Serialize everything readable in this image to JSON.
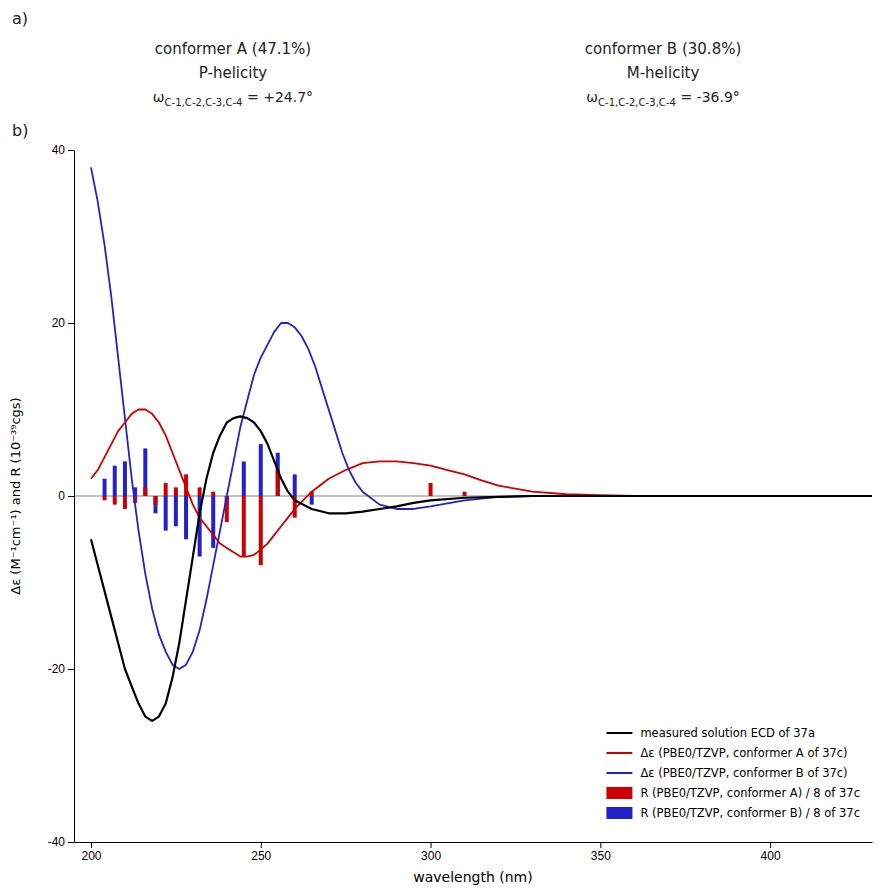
{
  "chart_data": {
    "type": "bar",
    "x_label": "wavelength (nm)",
    "y_label": "Δε (M⁻¹cm⁻¹) and R (10⁻³⁹cgs)",
    "annotations": [
      {
        "text": "a)"
      },
      {
        "text": "b)"
      },
      {
        "text": "conformer A (47.1%)"
      },
      {
        "text": "P-helicity"
      },
      {
        "text": "ω",
        "subscript": "C-1,C-2,C-3,C-4",
        "after": " = +24.7°"
      },
      {
        "text": "conformer B (30.8%)"
      },
      {
        "text": "M-helicity"
      },
      {
        "text": "ω",
        "subscript": "C-1,C-2,C-3,C-4",
        "after": " = -36.9°"
      }
    ],
    "xlim": [
      195,
      430
    ],
    "ylim": [
      -40,
      40
    ],
    "xticks": [
      200,
      250,
      300,
      350,
      400
    ],
    "yticks": [
      -40,
      -20,
      0,
      20,
      40
    ],
    "legend": "lower right",
    "series": [
      {
        "name": "measured solution ECD of 37a",
        "type": "line",
        "color": "#000000",
        "x": [
          200,
          202,
          204,
          206,
          208,
          210,
          212,
          214,
          216,
          218,
          220,
          222,
          224,
          226,
          228,
          230,
          232,
          234,
          236,
          238,
          240,
          242,
          244,
          246,
          248,
          250,
          252,
          254,
          256,
          258,
          260,
          265,
          270,
          275,
          280,
          285,
          290,
          295,
          300,
          310,
          320,
          330,
          340,
          350,
          360,
          370,
          380,
          390,
          400,
          410,
          420,
          430
        ],
        "values": [
          -5,
          -8,
          -11,
          -14,
          -17,
          -20,
          -22,
          -24,
          -25.5,
          -26,
          -25.5,
          -24,
          -21,
          -17,
          -12,
          -7,
          -2,
          2,
          5,
          7,
          8.5,
          9,
          9.2,
          9,
          8.5,
          7.5,
          6,
          4,
          2,
          0.5,
          -0.5,
          -1.5,
          -2,
          -2,
          -1.8,
          -1.5,
          -1.2,
          -0.8,
          -0.5,
          -0.2,
          -0.1,
          0,
          0,
          0,
          0,
          0,
          0,
          0,
          0,
          0,
          0,
          0
        ]
      },
      {
        "name": "Δε (PBE0/TZVP, conformer A of 37c)",
        "type": "line",
        "color": "#cc0000",
        "x": [
          200,
          202,
          204,
          206,
          208,
          210,
          212,
          214,
          216,
          218,
          220,
          222,
          224,
          226,
          228,
          230,
          232,
          234,
          236,
          238,
          240,
          242,
          244,
          246,
          248,
          250,
          252,
          254,
          256,
          258,
          260,
          265,
          270,
          275,
          280,
          285,
          290,
          295,
          300,
          305,
          310,
          315,
          320,
          330,
          340,
          350,
          360,
          370,
          380,
          390,
          400,
          410,
          420,
          430
        ],
        "values": [
          2,
          3,
          4.5,
          6,
          7.5,
          8.5,
          9.5,
          10,
          10,
          9.5,
          8.5,
          7,
          5,
          3,
          1,
          -1,
          -2.5,
          -3.5,
          -4.5,
          -5.5,
          -6,
          -6.5,
          -7,
          -7,
          -6.8,
          -6.2,
          -5.5,
          -4.5,
          -3.5,
          -2.5,
          -1.5,
          0.5,
          2,
          3,
          3.8,
          4,
          4,
          3.8,
          3.5,
          3,
          2.5,
          1.8,
          1.2,
          0.5,
          0.2,
          0.1,
          0,
          0,
          0,
          0,
          0,
          0,
          0,
          0
        ]
      },
      {
        "name": "Δε (PBE0/TZVP, conformer B of 37c)",
        "type": "line",
        "color": "#2222cc",
        "x": [
          200,
          202,
          204,
          206,
          208,
          210,
          212,
          214,
          216,
          218,
          220,
          222,
          224,
          226,
          228,
          230,
          232,
          234,
          236,
          238,
          240,
          242,
          244,
          246,
          248,
          250,
          252,
          254,
          256,
          258,
          260,
          262,
          264,
          266,
          268,
          270,
          272,
          274,
          276,
          278,
          280,
          285,
          290,
          295,
          300,
          310,
          320,
          330,
          340,
          350,
          360,
          370,
          380,
          390,
          400,
          410,
          420,
          430
        ],
        "values": [
          38,
          34,
          29,
          23,
          16,
          9,
          2,
          -4,
          -9,
          -13,
          -16,
          -18,
          -19.5,
          -20,
          -19.5,
          -18,
          -15.5,
          -12,
          -8,
          -4,
          0,
          4,
          8,
          11,
          14,
          16,
          17.5,
          19,
          20,
          20,
          19.5,
          18.5,
          17,
          15,
          12.5,
          10,
          7.5,
          5,
          3,
          1.5,
          0.5,
          -1,
          -1.5,
          -1.5,
          -1.2,
          -0.5,
          -0.1,
          0,
          0,
          0,
          0,
          0,
          0,
          0,
          0,
          0,
          0,
          0
        ]
      },
      {
        "name": "R (PBE0/TZVP, conformer A) / 8 of 37c",
        "type": "bar",
        "color": "#cc0000",
        "x": [
          204,
          207,
          210,
          213,
          216,
          219,
          222,
          225,
          228,
          232,
          236,
          240,
          245,
          250,
          255,
          260,
          265,
          300,
          310
        ],
        "values": [
          -0.5,
          -1,
          -1.5,
          -0.8,
          1,
          -1,
          1.5,
          1,
          2.5,
          1,
          0.5,
          -3,
          -7,
          -8,
          3,
          -2.5,
          0.5,
          1.5,
          0.5
        ]
      },
      {
        "name": "R (PBE0/TZVP, conformer B) / 8 of 37c",
        "type": "bar",
        "color": "#2222cc",
        "x": [
          204,
          207,
          210,
          213,
          216,
          219,
          222,
          225,
          228,
          232,
          236,
          240,
          245,
          250,
          255,
          260,
          265
        ],
        "values": [
          2,
          3.5,
          4,
          1,
          5.5,
          -2,
          -4,
          -3.5,
          -5,
          -7,
          -6,
          -1,
          4,
          6,
          5,
          2.5,
          -1
        ]
      }
    ]
  }
}
